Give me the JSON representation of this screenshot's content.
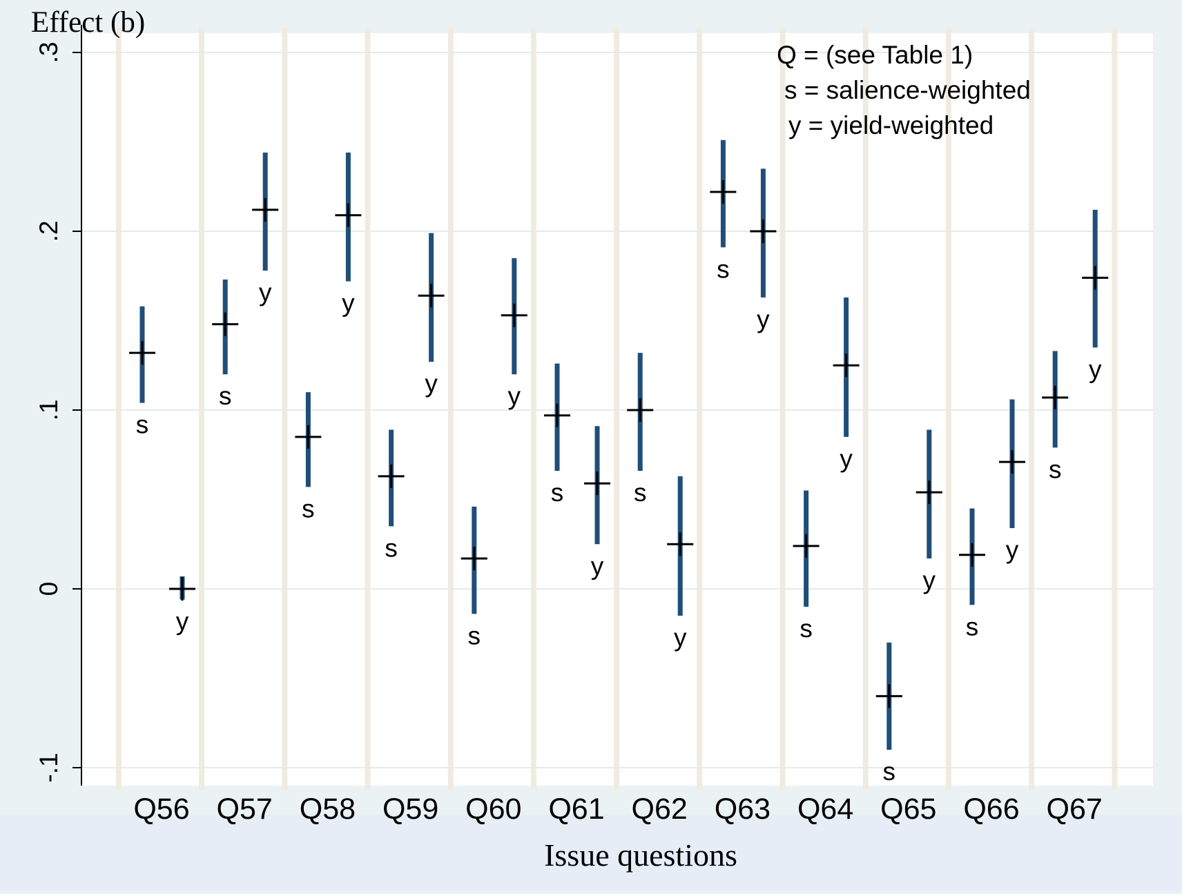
{
  "chart_data": {
    "type": "scatter",
    "title": "",
    "ylabel": "Effect (b)",
    "xlabel": "Issue questions",
    "ylim": [
      -0.1,
      0.3
    ],
    "yticks": [
      {
        "value": -0.1,
        "label": "-.1"
      },
      {
        "value": 0,
        "label": "0"
      },
      {
        "value": 0.1,
        "label": ".1"
      },
      {
        "value": 0.2,
        "label": ".2"
      },
      {
        "value": 0.3,
        "label": ".3"
      }
    ],
    "categories": [
      "Q56",
      "Q57",
      "Q58",
      "Q59",
      "Q60",
      "Q61",
      "Q62",
      "Q63",
      "Q64",
      "Q65",
      "Q66",
      "Q67"
    ],
    "legend": {
      "position": "top-right",
      "lines": [
        "Q = (see Table 1)",
        "s = salience-weighted",
        "y = yield-weighted"
      ]
    },
    "colors": {
      "interval": "#1f4e79",
      "marker": "#000000",
      "band": "#efebe0",
      "background": "#eaf2f3",
      "plot": "#ffffff"
    },
    "series": [
      {
        "name": "s = salience-weighted",
        "marker_label": "s",
        "points": [
          {
            "question": "Q56",
            "estimate": 0.132,
            "lower": 0.104,
            "upper": 0.158
          },
          {
            "question": "Q57",
            "estimate": 0.148,
            "lower": 0.12,
            "upper": 0.173
          },
          {
            "question": "Q58",
            "estimate": 0.085,
            "lower": 0.057,
            "upper": 0.11
          },
          {
            "question": "Q59",
            "estimate": 0.063,
            "lower": 0.035,
            "upper": 0.089
          },
          {
            "question": "Q60",
            "estimate": 0.017,
            "lower": -0.014,
            "upper": 0.046
          },
          {
            "question": "Q61",
            "estimate": 0.097,
            "lower": 0.066,
            "upper": 0.126
          },
          {
            "question": "Q62",
            "estimate": 0.1,
            "lower": 0.066,
            "upper": 0.132
          },
          {
            "question": "Q63",
            "estimate": 0.222,
            "lower": 0.191,
            "upper": 0.251
          },
          {
            "question": "Q64",
            "estimate": 0.024,
            "lower": -0.01,
            "upper": 0.055
          },
          {
            "question": "Q65",
            "estimate": -0.06,
            "lower": -0.09,
            "upper": -0.03
          },
          {
            "question": "Q66",
            "estimate": 0.019,
            "lower": -0.009,
            "upper": 0.045
          },
          {
            "question": "Q67",
            "estimate": 0.107,
            "lower": 0.079,
            "upper": 0.133
          }
        ]
      },
      {
        "name": "y = yield-weighted",
        "marker_label": "y",
        "points": [
          {
            "question": "Q56",
            "estimate": 0.0,
            "lower": -0.006,
            "upper": 0.007
          },
          {
            "question": "Q57",
            "estimate": 0.212,
            "lower": 0.178,
            "upper": 0.244
          },
          {
            "question": "Q58",
            "estimate": 0.209,
            "lower": 0.172,
            "upper": 0.244
          },
          {
            "question": "Q59",
            "estimate": 0.164,
            "lower": 0.127,
            "upper": 0.199
          },
          {
            "question": "Q60",
            "estimate": 0.153,
            "lower": 0.12,
            "upper": 0.185
          },
          {
            "question": "Q61",
            "estimate": 0.059,
            "lower": 0.025,
            "upper": 0.091
          },
          {
            "question": "Q62",
            "estimate": 0.025,
            "lower": -0.015,
            "upper": 0.063
          },
          {
            "question": "Q63",
            "estimate": 0.2,
            "lower": 0.163,
            "upper": 0.235
          },
          {
            "question": "Q64",
            "estimate": 0.125,
            "lower": 0.085,
            "upper": 0.163
          },
          {
            "question": "Q65",
            "estimate": 0.054,
            "lower": 0.017,
            "upper": 0.089
          },
          {
            "question": "Q66",
            "estimate": 0.071,
            "lower": 0.034,
            "upper": 0.106
          },
          {
            "question": "Q67",
            "estimate": 0.174,
            "lower": 0.135,
            "upper": 0.212
          }
        ]
      }
    ]
  }
}
